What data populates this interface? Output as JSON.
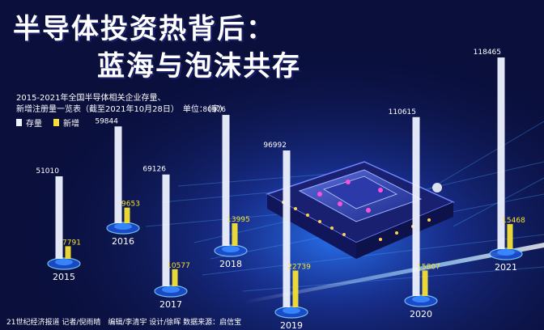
{
  "header": {
    "title_line1": "半导体投资热背后：",
    "title_line2": "蓝海与泡沫共存",
    "subtitle_line1": "2015-2021年全国半导体相关企业存量、",
    "subtitle_line2": "新增注册量一览表（截至2021年10月28日）　单位：（家）"
  },
  "legend": {
    "stock_label": "存量",
    "new_label": "新增"
  },
  "footer": {
    "credits": "21世纪经济报道 记者/倪雨晴　编辑/李清宇 设计/徐晖 数据来源：启信宝"
  },
  "colors": {
    "stock": "#eef2ff",
    "new": "#f5e133",
    "background": "#0a0f3c",
    "label": "#ffffff"
  },
  "chart_data": {
    "type": "bar",
    "categories": [
      "2015",
      "2016",
      "2017",
      "2018",
      "2019",
      "2020",
      "2021"
    ],
    "series": [
      {
        "name": "存量",
        "values": [
          51010,
          59844,
          69126,
          80976,
          96992,
          110615,
          118465
        ]
      },
      {
        "name": "新增",
        "values": [
          7791,
          9653,
          10577,
          13995,
          22739,
          15807,
          15468
        ]
      }
    ],
    "title": "2015-2021年全国半导体相关企业存量、新增注册量一览表（截至2021年10月28日）",
    "unit": "（家）",
    "legend": "top-left",
    "grid": false
  }
}
